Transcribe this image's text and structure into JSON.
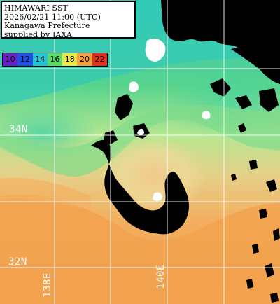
{
  "title_box": {
    "line1": "HIMAWARI SST",
    "line2": "2026/02/21 11:00 (UTC)",
    "line3": "Kanagawa Prefecture",
    "line4": "supplied by JAXA"
  },
  "legend": {
    "labels": [
      "10",
      "12",
      "14",
      "16",
      "18",
      "20",
      "22"
    ],
    "colors": [
      "#6a1fc4",
      "#1f4fe0",
      "#22c4d8",
      "#5ad86a",
      "#e8e84a",
      "#f0a040",
      "#e03020"
    ]
  },
  "grid": {
    "lat_34": "34N",
    "lat_32": "32N",
    "lon_138": "138E",
    "lon_140": "140E"
  },
  "colors": {
    "land": "#000000",
    "gridline": "#ffffff",
    "warm_water": "#f0a24c",
    "mid_water": "#9adf8a",
    "cool_water": "#26c7c4",
    "cloud": "#ffffff"
  }
}
